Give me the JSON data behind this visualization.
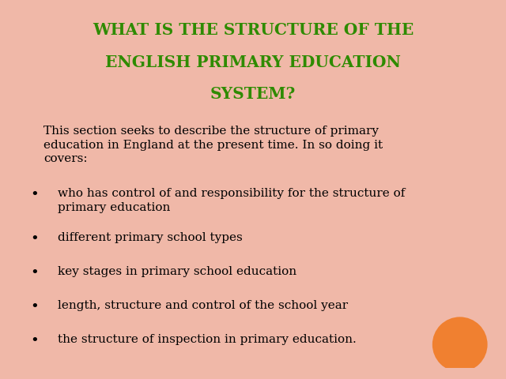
{
  "title_line1": "WHAT IS THE STRUCTURE OF THE",
  "title_line2": "ENGLISH PRIMARY EDUCATION",
  "title_line3": "SYSTEM?",
  "title_color": "#2e8b00",
  "intro_text": "This section seeks to describe the structure of primary\neducation in England at the present time. In so doing it\ncovers:",
  "bullet_texts": [
    "who has control of and responsibility for the structure of\nprimary education",
    "different primary school types",
    "key stages in primary school education",
    "length, structure and control of the school year",
    "the structure of inspection in primary education."
  ],
  "background_color": "#ffffff",
  "border_color": "#f0b8a8",
  "text_color": "#000000",
  "bullet_color": "#000000",
  "orange_circle_color": "#f08030",
  "title_fontsize": 14.5,
  "body_fontsize": 11.0,
  "bullet_fontsize": 13.0
}
